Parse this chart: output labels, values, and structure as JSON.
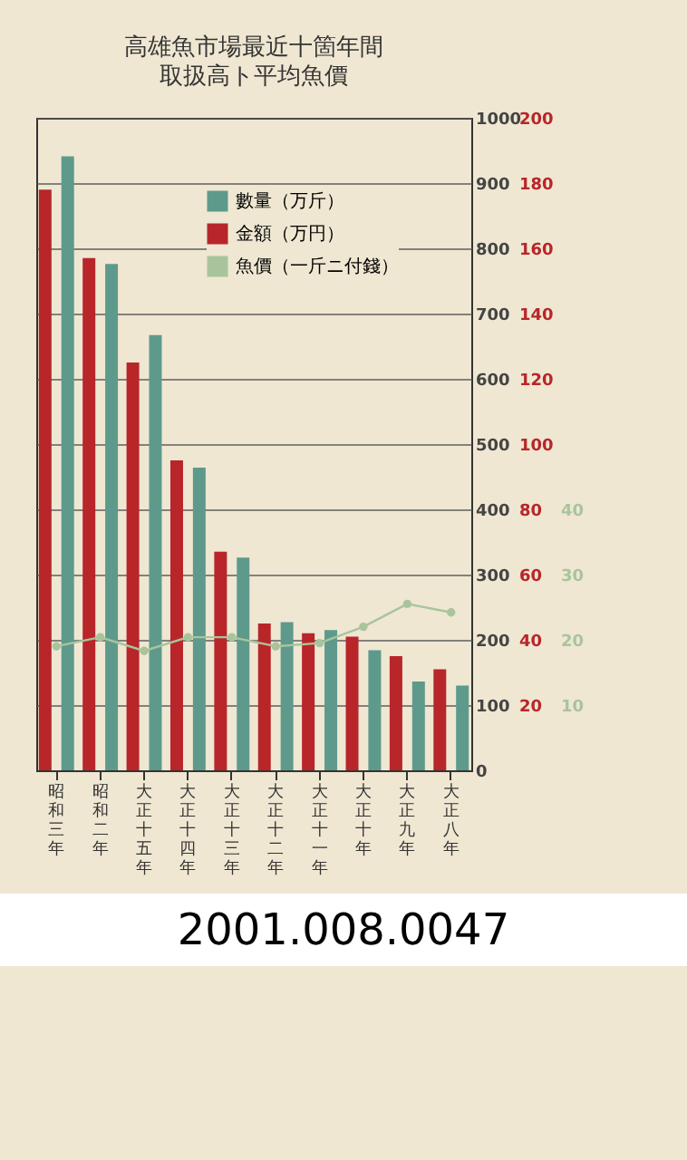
{
  "chart_data": {
    "type": "bar",
    "title": "高雄魚市場最近十箇年間",
    "subtitle": "取扱高ト平均魚價",
    "categories": [
      "昭和三年",
      "昭和二年",
      "大正十五年",
      "大正十四年",
      "大正十三年",
      "大正十二年",
      "大正十一年",
      "大正十年",
      "大正九年",
      "大正八年"
    ],
    "series": [
      {
        "name": "數量（万斤）",
        "color": "#5e9a8c",
        "values": [
          941,
          776,
          667,
          464,
          326,
          227,
          215,
          184,
          136,
          130
        ]
      },
      {
        "name": "金額（万円）",
        "color": "#b8262a",
        "axis": "y2",
        "values": [
          178,
          157,
          125,
          95,
          67,
          45,
          42,
          41,
          35,
          31
        ]
      },
      {
        "name": "魚價（一斤ニ付錢）",
        "type": "line",
        "color": "#a9c49c",
        "axis": "y3",
        "marker": "circle",
        "values": [
          19,
          20.4,
          18.3,
          20.4,
          20.4,
          19,
          19.5,
          22,
          25.5,
          24.2
        ]
      }
    ],
    "ylim": [
      0,
      1000
    ],
    "yticks": [
      0,
      100,
      200,
      300,
      400,
      500,
      600,
      700,
      800,
      900,
      1000
    ],
    "y2lim": [
      0,
      200
    ],
    "y2ticks": [
      20,
      40,
      60,
      80,
      100,
      120,
      140,
      160,
      180,
      200
    ],
    "y3lim": [
      0,
      100
    ],
    "y3ticks": [
      10,
      20,
      30,
      40
    ],
    "grid": "y",
    "legend": "top right",
    "annotations": [
      "2001.008.0047"
    ]
  }
}
